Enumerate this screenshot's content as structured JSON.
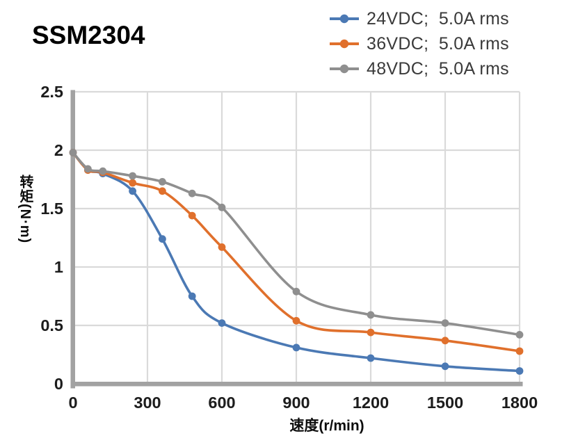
{
  "chart_data": {
    "type": "line",
    "title": "SSM2304",
    "xlabel": "速度(r/min)",
    "ylabel": "转矩(N·m)",
    "x": [
      0,
      60,
      120,
      240,
      360,
      480,
      600,
      900,
      1200,
      1500,
      1800
    ],
    "series": [
      {
        "id": "24vdc",
        "name": "24VDC;  5.0A rms",
        "color": "#4B79B4",
        "values": [
          1.98,
          1.83,
          1.8,
          1.65,
          1.24,
          0.75,
          0.52,
          0.31,
          0.22,
          0.15,
          0.11
        ]
      },
      {
        "id": "36vdc",
        "name": "36VDC;  5.0A rms",
        "color": "#E0702C",
        "values": [
          1.98,
          1.83,
          1.81,
          1.72,
          1.65,
          1.44,
          1.17,
          0.54,
          0.44,
          0.37,
          0.28
        ]
      },
      {
        "id": "48vdc",
        "name": "48VDC;  5.0A rms",
        "color": "#8F8F8F",
        "values": [
          1.98,
          1.84,
          1.82,
          1.78,
          1.73,
          1.63,
          1.51,
          0.79,
          0.59,
          0.52,
          0.42
        ]
      }
    ],
    "xlim": [
      0,
      1800
    ],
    "ylim": [
      0,
      2.5
    ],
    "xticks": [
      0,
      300,
      600,
      900,
      1200,
      1500,
      1800
    ],
    "yticks": [
      0,
      0.5,
      1,
      1.5,
      2,
      2.5
    ],
    "grid": true,
    "legend_position": "top-right",
    "style": {
      "grid_color": "#DADADA",
      "spine_color": "#A2A2A2",
      "tick_text_color": "#1C1C1C",
      "legend_text_color": "#3A3A3A",
      "title_color": "#000000"
    }
  }
}
